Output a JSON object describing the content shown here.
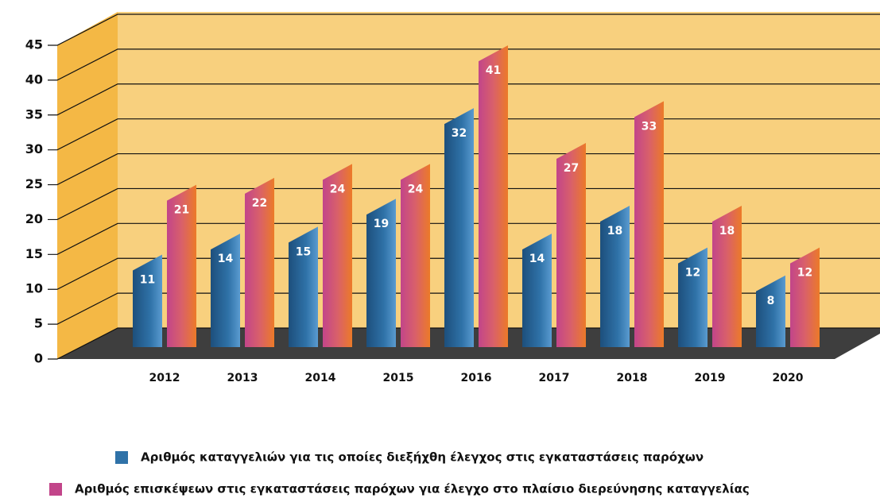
{
  "chart_data": {
    "type": "bar3d",
    "categories": [
      "2012",
      "2013",
      "2014",
      "2015",
      "2016",
      "2017",
      "2018",
      "2019",
      "2020"
    ],
    "series": [
      {
        "name": "Αριθμός καταγγελιών για τις οποίες διεξήχθη έλεγχος στις εγκαταστάσεις παρόχων",
        "color": "#2f72a8",
        "values": [
          11,
          14,
          15,
          19,
          32,
          14,
          18,
          12,
          8
        ]
      },
      {
        "name": "Αριθμός επισκέψεων στις εγκαταστάσεις παρόχων για έλεγχο στο πλαίσιο διερεύνησης καταγγελίας",
        "color": "#c2458a",
        "values": [
          21,
          22,
          24,
          24,
          41,
          27,
          33,
          18,
          12
        ]
      }
    ],
    "ylim": [
      0,
      45
    ],
    "yticks": [
      0,
      5,
      10,
      15,
      20,
      25,
      30,
      35,
      40,
      45
    ],
    "grid": true
  }
}
